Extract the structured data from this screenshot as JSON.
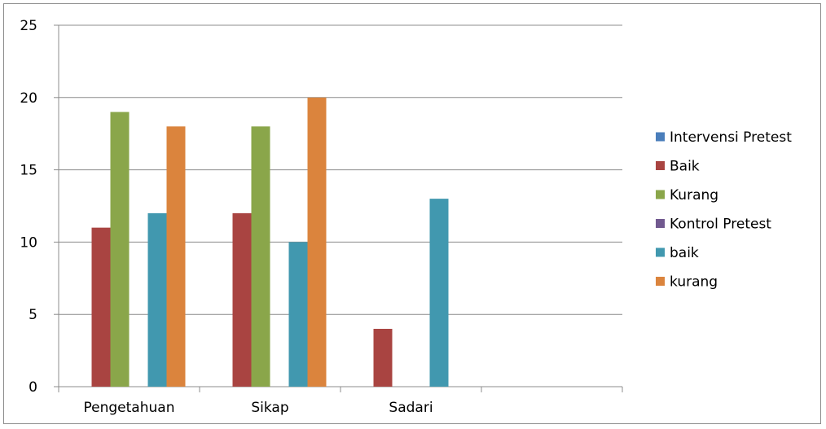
{
  "chart_data": {
    "type": "bar",
    "categories": [
      "Pengetahuan",
      "Sikap",
      "Sadari",
      ""
    ],
    "series": [
      {
        "name": "Intervensi Pretest",
        "color": "#4a7ebb",
        "values": [
          null,
          null,
          null,
          null
        ]
      },
      {
        "name": "Baik",
        "color": "#a94441",
        "values": [
          11,
          12,
          4,
          null
        ]
      },
      {
        "name": "Kurang",
        "color": "#8aa64a",
        "values": [
          19,
          18,
          null,
          null
        ]
      },
      {
        "name": "Kontrol Pretest",
        "color": "#71598f",
        "values": [
          null,
          null,
          null,
          null
        ]
      },
      {
        "name": "baik",
        "color": "#4198af",
        "values": [
          12,
          10,
          13,
          null
        ]
      },
      {
        "name": "kurang",
        "color": "#db843d",
        "values": [
          18,
          20,
          null,
          null
        ]
      }
    ],
    "ylim": [
      0,
      25
    ],
    "yticks": [
      0,
      5,
      10,
      15,
      20,
      25
    ],
    "grid": true,
    "legend_position": "right"
  }
}
